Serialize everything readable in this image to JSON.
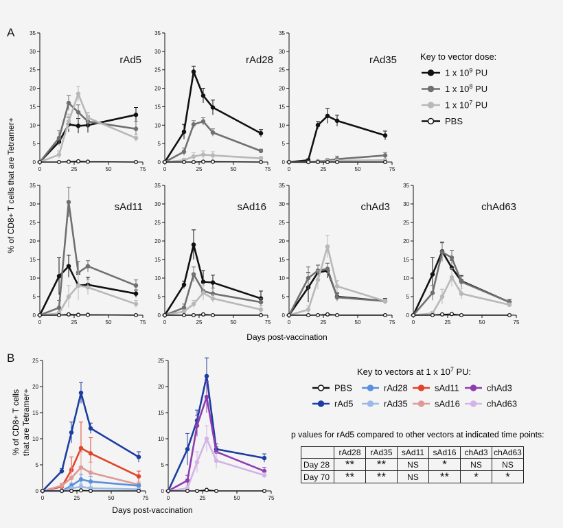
{
  "figure": {
    "panel_labels": [
      "A",
      "B"
    ],
    "ylabel_A": "% of CD8+ T cells that are Tetramer+",
    "ylabel_B_line1": "% of CD8+ T cells",
    "ylabel_B_line2": "that are Tetramer+",
    "xlabel": "Days post-vaccination"
  },
  "key_dose": {
    "title": "Key to vector dose:",
    "items": [
      {
        "label_base": "1 x 10",
        "exp": "9",
        "unit": " PU",
        "color": "#111111",
        "filled": true
      },
      {
        "label_base": "1 x 10",
        "exp": "8",
        "unit": " PU",
        "color": "#707070",
        "filled": true
      },
      {
        "label_base": "1 x 10",
        "exp": "7",
        "unit": " PU",
        "color": "#b8b8b8",
        "filled": true
      },
      {
        "label_base": "PBS",
        "exp": "",
        "unit": "",
        "color": "#111111",
        "filled": false
      }
    ]
  },
  "key_vectors": {
    "title_base": "Key to vectors at 1 x 10",
    "title_exp": "7",
    "title_unit": " PU:",
    "items": [
      {
        "label": "PBS",
        "color": "#111111",
        "filled": false
      },
      {
        "label": "rAd28",
        "color": "#5b8fdc",
        "filled": true
      },
      {
        "label": "sAd11",
        "color": "#e2442a",
        "filled": true
      },
      {
        "label": "chAd3",
        "color": "#8e3db0",
        "filled": true
      },
      {
        "label": "rAd5",
        "color": "#1c3ea0",
        "filled": true
      },
      {
        "label": "rAd35",
        "color": "#9bbbe6",
        "filled": true
      },
      {
        "label": "sAd16",
        "color": "#dd9a96",
        "filled": true
      },
      {
        "label": "chAd63",
        "color": "#d2b4e8",
        "filled": true
      }
    ]
  },
  "pvalues": {
    "caption": "p values for rAd5 compared to other vectors at indicated time points:",
    "columns": [
      "rAd28",
      "rAd35",
      "sAd11",
      "sAd16",
      "chAd3",
      "chAd63"
    ],
    "rows": [
      {
        "label": "Day 28",
        "values": [
          "**",
          "**",
          "NS",
          "*",
          "NS",
          "NS"
        ]
      },
      {
        "label": "Day 70",
        "values": [
          "**",
          "**",
          "NS",
          "**",
          "*",
          "*"
        ]
      }
    ]
  },
  "chart_data": [
    {
      "type": "line",
      "panel": "A",
      "title": "rAd5",
      "x": [
        0,
        14,
        21,
        28,
        35,
        70
      ],
      "xlim": [
        0,
        75
      ],
      "ylim": [
        0,
        35
      ],
      "xticks": [
        0,
        25,
        50,
        75
      ],
      "yticks": [
        0,
        5,
        10,
        15,
        20,
        25,
        30,
        35
      ],
      "series": [
        {
          "values": [
            0,
            5.5,
            10.2,
            9.8,
            10,
            12.8
          ],
          "error": [
            0,
            1,
            2,
            2,
            2,
            2
          ],
          "color": "#111111",
          "filled": true
        },
        {
          "values": [
            0,
            6.5,
            16,
            13.5,
            11,
            9
          ],
          "error": [
            0,
            2,
            2,
            2,
            1.5,
            2
          ],
          "color": "#707070",
          "filled": true
        },
        {
          "values": [
            0,
            2,
            11,
            18.5,
            12,
            6.5
          ],
          "error": [
            0,
            1,
            2,
            2,
            1.5,
            1
          ],
          "color": "#b8b8b8",
          "filled": true
        },
        {
          "values": [
            0,
            0,
            0.1,
            0.2,
            0.1,
            0
          ],
          "error": [
            0,
            0,
            0,
            0,
            0,
            0
          ],
          "color": "#111111",
          "filled": false
        }
      ]
    },
    {
      "type": "line",
      "panel": "A",
      "title": "rAd28",
      "x": [
        0,
        14,
        21,
        28,
        35,
        70
      ],
      "xlim": [
        0,
        75
      ],
      "ylim": [
        0,
        35
      ],
      "xticks": [
        0,
        25,
        50,
        75
      ],
      "yticks": [
        0,
        5,
        10,
        15,
        20,
        25,
        30,
        35
      ],
      "series": [
        {
          "values": [
            0,
            8.2,
            24.5,
            18,
            14.8,
            7.8
          ],
          "error": [
            0,
            2,
            1.5,
            2,
            2,
            1
          ],
          "color": "#111111",
          "filled": true
        },
        {
          "values": [
            0,
            2.8,
            10.2,
            11,
            8,
            3
          ],
          "error": [
            0,
            1,
            1,
            1,
            1,
            0.5
          ],
          "color": "#707070",
          "filled": true
        },
        {
          "values": [
            0,
            0.5,
            1.5,
            2,
            1.8,
            1
          ],
          "error": [
            0,
            0.5,
            1,
            1,
            1,
            0.5
          ],
          "color": "#b8b8b8",
          "filled": true
        },
        {
          "values": [
            0,
            0,
            0,
            0.1,
            0.1,
            0
          ],
          "error": [
            0,
            0,
            0,
            0,
            0,
            0
          ],
          "color": "#111111",
          "filled": false
        }
      ]
    },
    {
      "type": "line",
      "panel": "A",
      "title": "rAd35",
      "x": [
        0,
        14,
        21,
        28,
        35,
        70
      ],
      "xlim": [
        0,
        75
      ],
      "ylim": [
        0,
        35
      ],
      "xticks": [
        0,
        25,
        50,
        75
      ],
      "yticks": [
        0,
        5,
        10,
        15,
        20,
        25,
        30,
        35
      ],
      "series": [
        {
          "values": [
            0,
            0.5,
            10,
            12.5,
            11.2,
            7.2
          ],
          "error": [
            0,
            0.3,
            1,
            2,
            1.5,
            1.2
          ],
          "color": "#111111",
          "filled": true
        },
        {
          "values": [
            0,
            0,
            0.2,
            0.4,
            0.8,
            1.8
          ],
          "error": [
            0,
            0,
            0.2,
            0.5,
            0.8,
            0.8
          ],
          "color": "#707070",
          "filled": true
        },
        {
          "values": [
            0,
            0,
            0.1,
            0.2,
            0.4,
            0.5
          ],
          "error": [
            0,
            0,
            0,
            0.3,
            0.3,
            0.3
          ],
          "color": "#b8b8b8",
          "filled": true
        },
        {
          "values": [
            0,
            0,
            0,
            0,
            0,
            0
          ],
          "error": [
            0,
            0,
            0,
            0,
            0,
            0
          ],
          "color": "#111111",
          "filled": false
        }
      ]
    },
    {
      "type": "line",
      "panel": "A",
      "title": "sAd11",
      "x": [
        0,
        14,
        21,
        28,
        35,
        70
      ],
      "xlim": [
        0,
        75
      ],
      "ylim": [
        0,
        35
      ],
      "xticks": [
        0,
        25,
        50,
        75
      ],
      "yticks": [
        0,
        5,
        10,
        15,
        20,
        25,
        30,
        35
      ],
      "series": [
        {
          "values": [
            0,
            10.5,
            13.2,
            8,
            8.2,
            5.8
          ],
          "error": [
            0,
            5,
            3,
            3,
            2,
            1
          ],
          "color": "#111111",
          "filled": true
        },
        {
          "values": [
            0,
            2,
            30.5,
            11.5,
            13.2,
            8
          ],
          "error": [
            0,
            2,
            4,
            3,
            1.5,
            1.5
          ],
          "color": "#707070",
          "filled": true
        },
        {
          "values": [
            0,
            0.5,
            5,
            8,
            7.5,
            3
          ],
          "error": [
            0,
            0.5,
            3,
            4,
            2,
            1
          ],
          "color": "#b8b8b8",
          "filled": true
        },
        {
          "values": [
            0,
            0,
            0.2,
            0.1,
            0.1,
            0
          ],
          "error": [
            0,
            0,
            0,
            0,
            0,
            0
          ],
          "color": "#111111",
          "filled": false
        }
      ]
    },
    {
      "type": "line",
      "panel": "A",
      "title": "sAd16",
      "x": [
        0,
        14,
        21,
        28,
        35,
        70
      ],
      "xlim": [
        0,
        75
      ],
      "ylim": [
        0,
        35
      ],
      "xticks": [
        0,
        25,
        50,
        75
      ],
      "yticks": [
        0,
        5,
        10,
        15,
        20,
        25,
        30,
        35
      ],
      "series": [
        {
          "values": [
            0,
            8.2,
            19,
            9,
            8.8,
            4.5
          ],
          "error": [
            0,
            1,
            4,
            3,
            2,
            2
          ],
          "color": "#111111",
          "filled": true
        },
        {
          "values": [
            0,
            2,
            11,
            6.5,
            5.8,
            3.5
          ],
          "error": [
            0,
            1,
            2,
            2,
            1.5,
            1
          ],
          "color": "#707070",
          "filled": true
        },
        {
          "values": [
            0,
            1,
            3,
            6,
            4.5,
            1.5
          ],
          "error": [
            0,
            0.5,
            1,
            2,
            1,
            1
          ],
          "color": "#b8b8b8",
          "filled": true
        },
        {
          "values": [
            0,
            0,
            0,
            0.2,
            0,
            0
          ],
          "error": [
            0,
            0,
            0,
            0,
            0,
            0
          ],
          "color": "#111111",
          "filled": false
        }
      ]
    },
    {
      "type": "line",
      "panel": "A",
      "title": "chAd3",
      "x": [
        0,
        14,
        21,
        28,
        35,
        70
      ],
      "xlim": [
        0,
        75
      ],
      "ylim": [
        0,
        35
      ],
      "xticks": [
        0,
        25,
        50,
        75
      ],
      "yticks": [
        0,
        5,
        10,
        15,
        20,
        25,
        30,
        35
      ],
      "series": [
        {
          "values": [
            0,
            7.5,
            11.5,
            12,
            5,
            3.8
          ],
          "error": [
            0,
            4,
            2,
            2,
            1,
            0.7
          ],
          "color": "#111111",
          "filled": true
        },
        {
          "values": [
            0,
            10,
            12,
            12.5,
            4.8,
            3.8
          ],
          "error": [
            0,
            3,
            1.5,
            1.5,
            1,
            0.5
          ],
          "color": "#707070",
          "filled": true
        },
        {
          "values": [
            0,
            1.5,
            9.5,
            18.5,
            7.8,
            3.8
          ],
          "error": [
            0,
            1,
            2.5,
            3,
            1.5,
            0.5
          ],
          "color": "#b8b8b8",
          "filled": true
        },
        {
          "values": [
            0,
            0,
            0,
            0.2,
            0,
            0
          ],
          "error": [
            0,
            0,
            0,
            0,
            0,
            0
          ],
          "color": "#111111",
          "filled": false
        }
      ]
    },
    {
      "type": "line",
      "panel": "A",
      "title": "chAd63",
      "x": [
        0,
        14,
        21,
        28,
        35,
        70
      ],
      "xlim": [
        0,
        75
      ],
      "ylim": [
        0,
        35
      ],
      "xticks": [
        0,
        25,
        50,
        75
      ],
      "yticks": [
        0,
        5,
        10,
        15,
        20,
        25,
        30,
        35
      ],
      "series": [
        {
          "values": [
            0,
            11,
            17.2,
            12.8,
            9.2,
            3.5
          ],
          "error": [
            0,
            4.5,
            2.5,
            2,
            1.5,
            0.7
          ],
          "color": "#111111",
          "filled": true
        },
        {
          "values": [
            0,
            6,
            17,
            15.5,
            9,
            3.5
          ],
          "error": [
            0,
            2,
            2.5,
            2,
            1.5,
            0.7
          ],
          "color": "#707070",
          "filled": true
        },
        {
          "values": [
            0,
            0.5,
            5,
            10.2,
            5.8,
            2.8
          ],
          "error": [
            0,
            0.5,
            2,
            2.5,
            1.5,
            0.5
          ],
          "color": "#b8b8b8",
          "filled": true
        },
        {
          "values": [
            0,
            0,
            0.2,
            0.3,
            0,
            0
          ],
          "error": [
            0,
            0,
            0,
            0,
            0,
            0
          ],
          "color": "#111111",
          "filled": false
        }
      ]
    },
    {
      "type": "line",
      "panel": "B",
      "title": "",
      "x": [
        0,
        14,
        21,
        28,
        35,
        70
      ],
      "xlim": [
        0,
        75
      ],
      "ylim": [
        0,
        25
      ],
      "xticks": [
        0,
        25,
        50,
        75
      ],
      "yticks": [
        0,
        5,
        10,
        15,
        20,
        25
      ],
      "series": [
        {
          "name": "rAd5",
          "values": [
            0,
            3.8,
            11.2,
            18.8,
            12,
            6.5
          ],
          "error": [
            0,
            0.5,
            2,
            2,
            1,
            1
          ],
          "color": "#1c3ea0",
          "filled": true
        },
        {
          "name": "sAd11",
          "values": [
            0,
            0.8,
            4,
            8.2,
            7.2,
            2.8
          ],
          "error": [
            0,
            0.5,
            2.5,
            5,
            3,
            1
          ],
          "color": "#e2442a",
          "filled": true
        },
        {
          "name": "sAd16",
          "values": [
            0,
            1,
            2.5,
            4.5,
            3.5,
            1.2
          ],
          "error": [
            0,
            0.5,
            2,
            3,
            2,
            0.5
          ],
          "color": "#dd9a96",
          "filled": true
        },
        {
          "name": "rAd28",
          "values": [
            0,
            0,
            1,
            2.2,
            1.8,
            1
          ],
          "error": [
            0,
            0,
            0.5,
            1,
            1,
            0.3
          ],
          "color": "#5b8fdc",
          "filled": true
        },
        {
          "name": "rAd35",
          "values": [
            0,
            0,
            0.5,
            0.8,
            0.5,
            0.3
          ],
          "error": [
            0,
            0,
            0.3,
            0.5,
            0.3,
            0.2
          ],
          "color": "#9bbbe6",
          "filled": true
        },
        {
          "name": "PBS",
          "values": [
            0,
            0,
            0,
            0.1,
            0,
            0
          ],
          "error": [
            0,
            0,
            0,
            0,
            0,
            0
          ],
          "color": "#111111",
          "filled": false
        }
      ]
    },
    {
      "type": "line",
      "panel": "B",
      "title": "",
      "x": [
        0,
        14,
        21,
        28,
        35,
        70
      ],
      "xlim": [
        0,
        75
      ],
      "ylim": [
        0,
        25
      ],
      "xticks": [
        0,
        25,
        50,
        75
      ],
      "yticks": [
        0,
        5,
        10,
        15,
        20,
        25
      ],
      "series": [
        {
          "name": "rAd5",
          "values": [
            0,
            8,
            13.5,
            22,
            8,
            6.3
          ],
          "error": [
            0,
            3,
            2,
            3.5,
            1,
            0.8
          ],
          "color": "#1c3ea0",
          "filled": true
        },
        {
          "name": "chAd3",
          "values": [
            0,
            2,
            12.5,
            18,
            7.5,
            3.8
          ],
          "error": [
            0,
            1,
            2,
            3,
            1,
            0.7
          ],
          "color": "#8e3db0",
          "filled": true
        },
        {
          "name": "chAd63",
          "values": [
            0,
            0.5,
            5.5,
            10,
            5.8,
            3
          ],
          "error": [
            0,
            0.5,
            2,
            2.5,
            1.5,
            0.5
          ],
          "color": "#d2b4e8",
          "filled": true
        },
        {
          "name": "PBS",
          "values": [
            0,
            0,
            0,
            0.2,
            0,
            0
          ],
          "error": [
            0,
            0,
            0,
            0,
            0,
            0
          ],
          "color": "#111111",
          "filled": false
        }
      ]
    }
  ]
}
